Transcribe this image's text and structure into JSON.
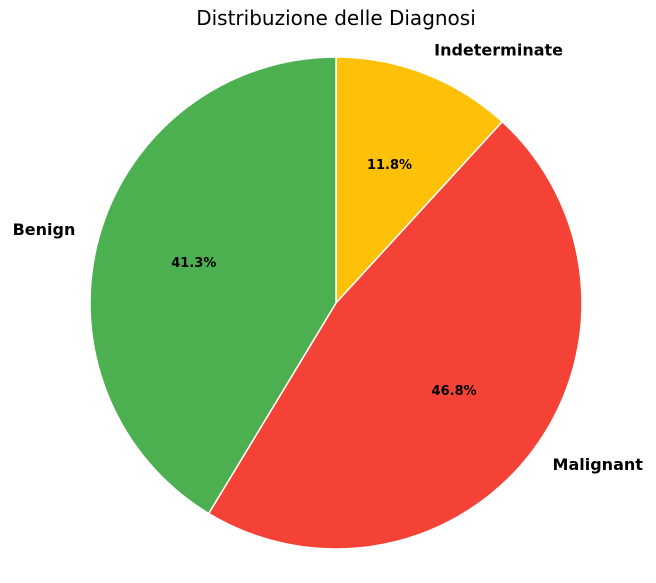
{
  "chart_data": {
    "type": "pie",
    "title": "Distribuzione delle Diagnosi",
    "slices": [
      {
        "label": "Indeterminate",
        "value": 11.8,
        "pct_label": "11.8%",
        "color": "#FFC107"
      },
      {
        "label": "Malignant",
        "value": 46.8,
        "pct_label": "46.8%",
        "color": "#F44336"
      },
      {
        "label": "Benign",
        "value": 41.3,
        "pct_label": "41.3%",
        "color": "#4CAF50"
      }
    ],
    "start_angle_deg": 90,
    "direction": "clockwise",
    "edge_color": "#ffffff"
  }
}
